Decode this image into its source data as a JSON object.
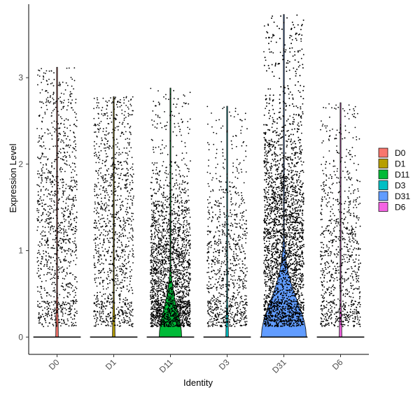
{
  "chart_data": {
    "type": "violin",
    "title": "",
    "xlabel": "Identity",
    "ylabel": "Expression Level",
    "categories": [
      "D0",
      "D1",
      "D11",
      "D3",
      "D31",
      "D6"
    ],
    "ylim": [
      -0.2,
      3.85
    ],
    "yticks": [
      0,
      1,
      2,
      3
    ],
    "grid": false,
    "legend_position": "right",
    "series": [
      {
        "name": "D0",
        "color": "#F8766D",
        "max": 3.12,
        "zero_fraction": 0.85,
        "point_count": 1100,
        "upper_mean": 1.3,
        "violin_width": 0.05
      },
      {
        "name": "D1",
        "color": "#B79F00",
        "max": 2.78,
        "zero_fraction": 0.85,
        "point_count": 1100,
        "upper_mean": 1.2,
        "violin_width": 0.05
      },
      {
        "name": "D11",
        "color": "#00BA38",
        "max": 2.88,
        "zero_fraction": 0.6,
        "point_count": 2300,
        "upper_mean": 0.7,
        "violin_width": 0.45
      },
      {
        "name": "D3",
        "color": "#00BFC4",
        "max": 2.67,
        "zero_fraction": 0.85,
        "point_count": 900,
        "upper_mean": 0.8,
        "violin_width": 0.05
      },
      {
        "name": "D31",
        "color": "#619CFF",
        "max": 3.73,
        "zero_fraction": 0.55,
        "point_count": 4500,
        "upper_mean": 1.1,
        "violin_width": 0.9
      },
      {
        "name": "D6",
        "color": "#F564E3",
        "max": 2.71,
        "zero_fraction": 0.85,
        "point_count": 900,
        "upper_mean": 0.9,
        "violin_width": 0.05
      }
    ]
  }
}
